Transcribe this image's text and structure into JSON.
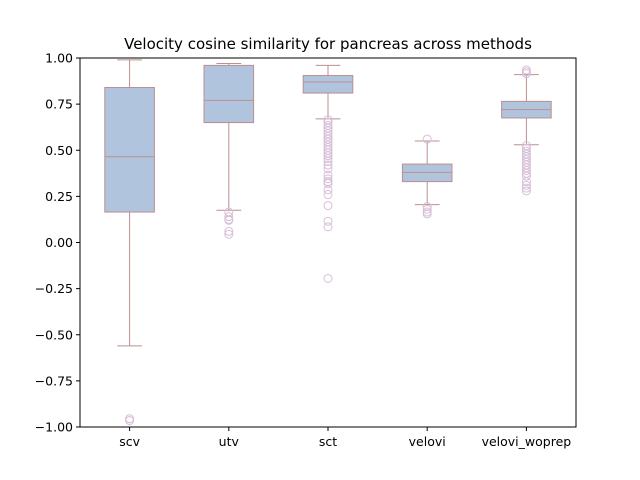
{
  "chart_data": {
    "type": "box",
    "title": "Velocity cosine similarity for pancreas across methods",
    "xlabel": "",
    "ylabel": "",
    "ylim": [
      -1.0,
      1.0
    ],
    "yticks": [
      -1.0,
      -0.75,
      -0.5,
      -0.25,
      0.0,
      0.25,
      0.5,
      0.75,
      1.0
    ],
    "ytick_labels": [
      "−1.00",
      "−0.75",
      "−0.50",
      "−0.25",
      "0.00",
      "0.25",
      "0.50",
      "0.75",
      "1.00"
    ],
    "grid": false,
    "categories": [
      "scv",
      "utv",
      "sct",
      "velovi",
      "velovi_woprep"
    ],
    "box_color": "#b0c4de",
    "line_color": "#bc8f8f",
    "outlier_color": "#d8bfd8",
    "boxes": [
      {
        "name": "scv",
        "whisker_low": -0.56,
        "q1": 0.165,
        "median": 0.465,
        "q3": 0.84,
        "whisker_high": 0.99,
        "outliers": [
          -0.955,
          -0.965
        ]
      },
      {
        "name": "utv",
        "whisker_low": 0.175,
        "q1": 0.65,
        "median": 0.77,
        "q3": 0.96,
        "whisker_high": 0.97,
        "outliers": [
          0.165,
          0.14,
          0.125,
          0.12,
          0.06,
          0.045
        ]
      },
      {
        "name": "sct",
        "whisker_low": 0.67,
        "q1": 0.81,
        "median": 0.87,
        "q3": 0.905,
        "whisker_high": 0.96,
        "outliers": [
          0.665,
          0.65,
          0.635,
          0.62,
          0.605,
          0.59,
          0.575,
          0.56,
          0.545,
          0.53,
          0.515,
          0.5,
          0.485,
          0.47,
          0.455,
          0.44,
          0.42,
          0.4,
          0.365,
          0.345,
          0.33,
          0.32,
          0.285,
          0.26,
          0.2,
          0.115,
          0.085,
          -0.195
        ]
      },
      {
        "name": "velovi",
        "whisker_low": 0.205,
        "q1": 0.33,
        "median": 0.38,
        "q3": 0.425,
        "whisker_high": 0.55,
        "outliers": [
          0.56,
          0.195,
          0.18,
          0.165,
          0.155
        ]
      },
      {
        "name": "velovi_woprep",
        "whisker_low": 0.53,
        "q1": 0.675,
        "median": 0.72,
        "q3": 0.765,
        "whisker_high": 0.91,
        "outliers": [
          0.935,
          0.925,
          0.915,
          0.525,
          0.51,
          0.495,
          0.48,
          0.465,
          0.45,
          0.435,
          0.42,
          0.405,
          0.39,
          0.375,
          0.36,
          0.33,
          0.31,
          0.295,
          0.28
        ]
      }
    ]
  }
}
